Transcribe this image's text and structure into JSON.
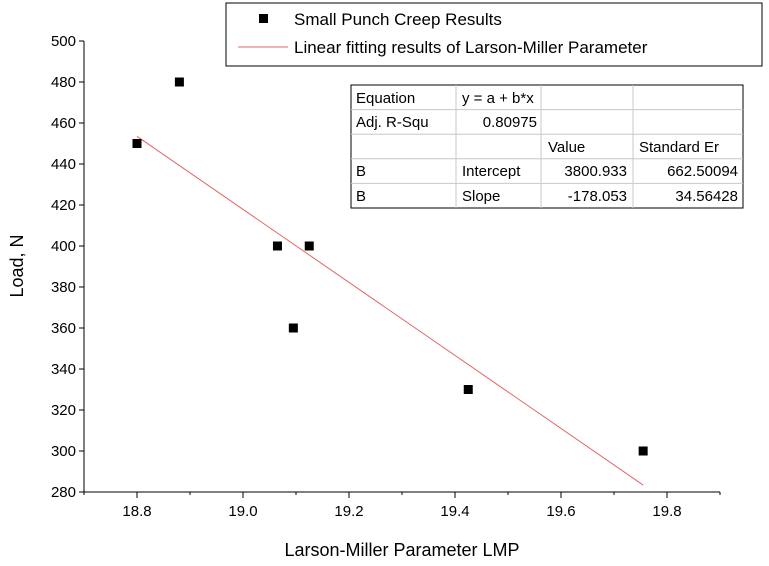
{
  "chart_data": {
    "type": "scatter",
    "xlabel": "Larson-Miller Parameter LMP",
    "ylabel": "Load, N",
    "xlim": [
      18.7,
      19.9
    ],
    "ylim": [
      280,
      500
    ],
    "xticks": [
      18.8,
      19.0,
      19.2,
      19.4,
      19.6,
      19.8
    ],
    "xtick_labels": [
      "18.8",
      "19.0",
      "19.2",
      "19.4",
      "19.6",
      "19.8"
    ],
    "yticks": [
      280,
      300,
      320,
      340,
      360,
      380,
      400,
      420,
      440,
      460,
      480,
      500
    ],
    "ytick_labels": [
      "280",
      "300",
      "320",
      "340",
      "360",
      "380",
      "400",
      "420",
      "440",
      "460",
      "480",
      "500"
    ],
    "grid": false,
    "legend_position": "top-right",
    "series": [
      {
        "name": "Small Punch Creep Results",
        "kind": "scatter",
        "marker": "square",
        "color": "#000000",
        "x": [
          18.8,
          18.88,
          19.065,
          19.095,
          19.125,
          19.425,
          19.755
        ],
        "y": [
          450,
          480,
          400,
          360,
          400,
          330,
          300
        ]
      },
      {
        "name": "Linear fitting results of Larson-Miller Parameter",
        "kind": "line",
        "color": "#e06666",
        "x": [
          18.8,
          19.755
        ],
        "y": [
          453.5,
          283.4
        ]
      }
    ],
    "fit_table": {
      "rows": [
        [
          "Equation",
          "y = a + b*x",
          "",
          ""
        ],
        [
          "Adj. R-Squ",
          "0.80975",
          "",
          ""
        ],
        [
          "",
          "",
          "Value",
          "Standard Er"
        ],
        [
          "B",
          "Intercept",
          "3800.933",
          "662.50094"
        ],
        [
          "B",
          "Slope",
          "-178.053",
          "34.56428"
        ]
      ]
    }
  }
}
